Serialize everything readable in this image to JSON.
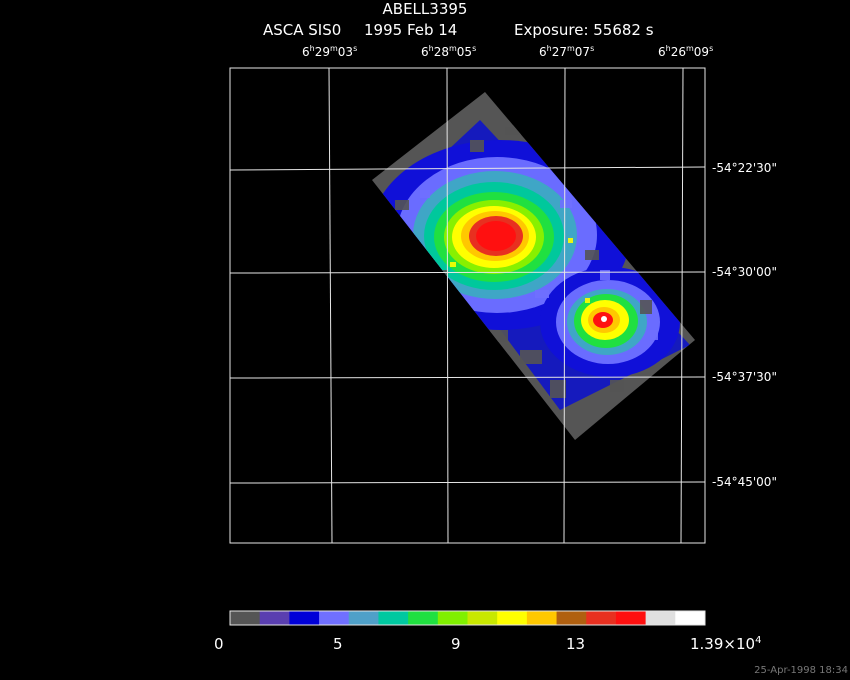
{
  "title": "ABELL3395",
  "subtitle": {
    "instrument": "ASCA SIS0",
    "date": "1995 Feb 14",
    "exposure": "Exposure: 55682 s"
  },
  "ra_labels": [
    {
      "h": "6",
      "m": "29",
      "s": "03"
    },
    {
      "h": "6",
      "m": "28",
      "s": "05"
    },
    {
      "h": "6",
      "m": "27",
      "s": "07"
    },
    {
      "h": "6",
      "m": "26",
      "s": "09"
    }
  ],
  "dec_labels": [
    "-54°22'30\"",
    "-54°30'00\"",
    "-54°37'30\"",
    "-54°45'00\""
  ],
  "colorbar": {
    "colors": [
      "#555555",
      "#5a3fb0",
      "#0000d8",
      "#7070ff",
      "#4fa0c8",
      "#00c8a0",
      "#20e040",
      "#80f000",
      "#c8e800",
      "#ffff00",
      "#ffc800",
      "#b06010",
      "#e83020",
      "#ff1010",
      "#e0e0e0",
      "#ffffff"
    ],
    "tick_labels": [
      "0",
      "5",
      "9",
      "13"
    ],
    "max_label_mantissa": "1.39×10",
    "max_label_exp": "4"
  },
  "footer": "25-Apr-1998 18:34"
}
